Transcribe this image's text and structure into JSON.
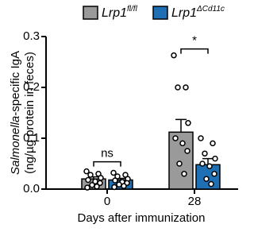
{
  "chart_data": {
    "type": "bar",
    "ylabel": [
      "Salmonella",
      "-specific IgA"
    ],
    "ylabel2": "(ng/µg protein in feces)",
    "xlabel": "Days after immunization",
    "categories": [
      "0",
      "28"
    ],
    "ylim": [
      0,
      0.3
    ],
    "yticks": [
      {
        "value": 0,
        "label": "0.0"
      },
      0.1,
      0.2,
      0.3
    ],
    "series": [
      {
        "name": [
          "Lrp1",
          "fl/fl"
        ],
        "color": "#9a9a9a",
        "values": [
          0.02,
          0.112
        ],
        "errors": [
          0.004,
          0.025
        ],
        "points": [
          [
            0.035,
            0.03,
            0.028,
            0.022,
            0.018,
            0.015,
            0.012,
            0.008,
            0.005,
            0.003
          ],
          [
            0.263,
            0.2,
            0.2,
            0.13,
            0.1,
            0.09,
            0.075,
            0.05,
            0.03
          ]
        ]
      },
      {
        "name": [
          "Lrp1",
          "ΔCd11c"
        ],
        "color": "#1f6fb5",
        "values": [
          0.018,
          0.048
        ],
        "errors": [
          0.003,
          0.012
        ],
        "points": [
          [
            0.032,
            0.028,
            0.025,
            0.02,
            0.017,
            0.014,
            0.012,
            0.009,
            0.006,
            0.004
          ],
          [
            0.1,
            0.09,
            0.07,
            0.06,
            0.05,
            0.045,
            0.03,
            0.02,
            0.01
          ]
        ]
      }
    ],
    "annotations": [
      "ns",
      "*"
    ]
  }
}
